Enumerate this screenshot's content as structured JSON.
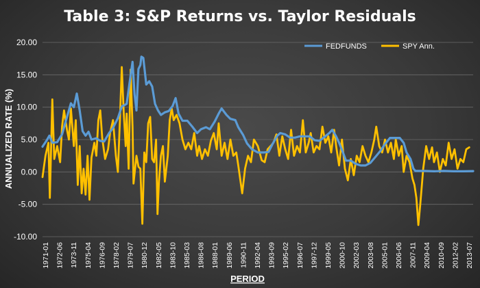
{
  "chart_data": {
    "type": "line",
    "title": "Table 3:  S&P Returns vs. Taylor Residuals",
    "xlabel": "PERIOD",
    "ylabel": "ANNUALIZED RATE (%)",
    "ylim": [
      -10,
      20
    ],
    "y_ticks": [
      "20.00",
      "15.00",
      "10.00",
      "5.00",
      "0.00",
      "-5.00",
      "-10.00"
    ],
    "x_range": [
      1971.0,
      2015.0
    ],
    "x_ticks": [
      "1971-01",
      "1972-06",
      "1973-11",
      "1975-04",
      "1976-09",
      "1978-02",
      "1979-07",
      "1980-12",
      "1982-05",
      "1983-10",
      "1985-03",
      "1986-08",
      "1988-01",
      "1989-06",
      "1990-11",
      "1992-04",
      "1993-09",
      "1995-02",
      "1996-07",
      "1997-12",
      "1999-05",
      "2000-10",
      "2002-03",
      "2003-08",
      "2005-01",
      "2006-06",
      "2007-11",
      "2009-04",
      "2010-09",
      "2012-02",
      "2013-07"
    ],
    "grid": true,
    "legend_position": "top-right",
    "series": [
      {
        "name": "FEDFUNDS",
        "color": "#5b9bd5",
        "points": [
          [
            1971.0,
            3.9
          ],
          [
            1971.4,
            4.8
          ],
          [
            1971.7,
            5.6
          ],
          [
            1972.0,
            4.5
          ],
          [
            1972.5,
            4.6
          ],
          [
            1973.0,
            5.8
          ],
          [
            1973.5,
            8.5
          ],
          [
            1973.9,
            10.6
          ],
          [
            1974.2,
            10.0
          ],
          [
            1974.5,
            12.1
          ],
          [
            1974.8,
            9.5
          ],
          [
            1975.1,
            6.3
          ],
          [
            1975.4,
            5.6
          ],
          [
            1975.7,
            6.2
          ],
          [
            1976.0,
            5.0
          ],
          [
            1976.5,
            5.2
          ],
          [
            1976.9,
            4.8
          ],
          [
            1977.3,
            4.7
          ],
          [
            1977.8,
            6.0
          ],
          [
            1978.2,
            6.8
          ],
          [
            1978.7,
            8.3
          ],
          [
            1979.1,
            10.1
          ],
          [
            1979.6,
            10.5
          ],
          [
            1979.9,
            13.8
          ],
          [
            1980.2,
            17.0
          ],
          [
            1980.4,
            12.0
          ],
          [
            1980.6,
            9.5
          ],
          [
            1980.8,
            15.9
          ],
          [
            1981.0,
            16.5
          ],
          [
            1981.1,
            17.8
          ],
          [
            1981.3,
            17.6
          ],
          [
            1981.6,
            13.5
          ],
          [
            1981.9,
            14.0
          ],
          [
            1982.2,
            13.2
          ],
          [
            1982.5,
            10.5
          ],
          [
            1982.8,
            9.5
          ],
          [
            1983.1,
            8.8
          ],
          [
            1983.5,
            9.2
          ],
          [
            1983.9,
            9.4
          ],
          [
            1984.3,
            10.2
          ],
          [
            1984.6,
            11.4
          ],
          [
            1984.9,
            9.0
          ],
          [
            1985.3,
            7.9
          ],
          [
            1985.8,
            7.9
          ],
          [
            1986.3,
            7.0
          ],
          [
            1986.8,
            6.0
          ],
          [
            1987.2,
            6.6
          ],
          [
            1987.7,
            6.9
          ],
          [
            1988.1,
            6.6
          ],
          [
            1988.6,
            7.8
          ],
          [
            1989.0,
            9.0
          ],
          [
            1989.3,
            9.8
          ],
          [
            1989.8,
            8.8
          ],
          [
            1990.2,
            8.2
          ],
          [
            1990.7,
            8.0
          ],
          [
            1991.0,
            6.9
          ],
          [
            1991.5,
            5.7
          ],
          [
            1991.9,
            4.4
          ],
          [
            1992.4,
            3.5
          ],
          [
            1993.0,
            3.0
          ],
          [
            1993.6,
            3.0
          ],
          [
            1994.1,
            3.1
          ],
          [
            1994.5,
            4.3
          ],
          [
            1995.0,
            5.6
          ],
          [
            1995.3,
            6.0
          ],
          [
            1995.8,
            5.8
          ],
          [
            1996.3,
            5.3
          ],
          [
            1996.8,
            5.3
          ],
          [
            1997.3,
            5.5
          ],
          [
            1997.8,
            5.5
          ],
          [
            1998.3,
            5.5
          ],
          [
            1998.8,
            4.9
          ],
          [
            1999.3,
            4.8
          ],
          [
            1999.8,
            5.4
          ],
          [
            2000.3,
            6.0
          ],
          [
            2000.6,
            6.5
          ],
          [
            2001.0,
            5.5
          ],
          [
            2001.3,
            4.5
          ],
          [
            2001.7,
            3.0
          ],
          [
            2002.0,
            1.75
          ],
          [
            2002.5,
            1.75
          ],
          [
            2003.0,
            1.25
          ],
          [
            2003.5,
            1.0
          ],
          [
            2004.0,
            1.0
          ],
          [
            2004.5,
            1.4
          ],
          [
            2005.0,
            2.3
          ],
          [
            2005.5,
            3.2
          ],
          [
            2006.0,
            4.3
          ],
          [
            2006.5,
            5.25
          ],
          [
            2007.0,
            5.25
          ],
          [
            2007.5,
            5.25
          ],
          [
            2007.9,
            4.5
          ],
          [
            2008.2,
            3.0
          ],
          [
            2008.6,
            2.0
          ],
          [
            2008.9,
            0.5
          ],
          [
            2009.1,
            0.15
          ],
          [
            2010.0,
            0.15
          ],
          [
            2011.0,
            0.1
          ],
          [
            2012.0,
            0.15
          ],
          [
            2013.0,
            0.1
          ],
          [
            2014.0,
            0.1
          ],
          [
            2015.0,
            0.13
          ]
        ]
      },
      {
        "name": "SPY Ann.",
        "color": "#ffc000",
        "points": [
          [
            1971.0,
            -0.8
          ],
          [
            1971.3,
            2.5
          ],
          [
            1971.6,
            4.5
          ],
          [
            1971.75,
            -4.0
          ],
          [
            1972.0,
            11.2
          ],
          [
            1972.2,
            2.0
          ],
          [
            1972.5,
            4.0
          ],
          [
            1972.8,
            1.5
          ],
          [
            1973.0,
            7.0
          ],
          [
            1973.2,
            9.5
          ],
          [
            1973.5,
            6.5
          ],
          [
            1973.7,
            5.0
          ],
          [
            1973.9,
            9.8
          ],
          [
            1974.2,
            4.0
          ],
          [
            1974.4,
            8.0
          ],
          [
            1974.6,
            -2.0
          ],
          [
            1974.8,
            4.0
          ],
          [
            1975.0,
            -3.3
          ],
          [
            1975.2,
            0.5
          ],
          [
            1975.4,
            -3.5
          ],
          [
            1975.6,
            2.5
          ],
          [
            1975.8,
            -4.3
          ],
          [
            1976.0,
            2.2
          ],
          [
            1976.3,
            4.5
          ],
          [
            1976.5,
            2.5
          ],
          [
            1976.7,
            8.0
          ],
          [
            1976.9,
            9.5
          ],
          [
            1977.1,
            5.2
          ],
          [
            1977.4,
            2.0
          ],
          [
            1977.7,
            3.5
          ],
          [
            1977.9,
            6.0
          ],
          [
            1978.2,
            8.0
          ],
          [
            1978.5,
            2.5
          ],
          [
            1978.7,
            0.0
          ],
          [
            1978.9,
            7.8
          ],
          [
            1979.1,
            16.2
          ],
          [
            1979.3,
            9.0
          ],
          [
            1979.5,
            4.0
          ],
          [
            1979.6,
            9.0
          ],
          [
            1979.8,
            0.5
          ],
          [
            1980.0,
            15.8
          ],
          [
            1980.2,
            7.0
          ],
          [
            1980.3,
            -1.8
          ],
          [
            1980.6,
            2.5
          ],
          [
            1980.8,
            0.8
          ],
          [
            1981.0,
            0.5
          ],
          [
            1981.2,
            -8.0
          ],
          [
            1981.4,
            3.0
          ],
          [
            1981.6,
            1.5
          ],
          [
            1981.8,
            7.5
          ],
          [
            1982.0,
            8.5
          ],
          [
            1982.2,
            2.0
          ],
          [
            1982.4,
            1.5
          ],
          [
            1982.6,
            5.0
          ],
          [
            1982.75,
            -6.5
          ],
          [
            1982.9,
            -1.5
          ],
          [
            1983.1,
            2.5
          ],
          [
            1983.3,
            4.0
          ],
          [
            1983.5,
            -1.5
          ],
          [
            1983.8,
            2.5
          ],
          [
            1984.0,
            8.0
          ],
          [
            1984.2,
            9.8
          ],
          [
            1984.4,
            8.0
          ],
          [
            1984.7,
            8.8
          ],
          [
            1985.0,
            7.5
          ],
          [
            1985.3,
            5.0
          ],
          [
            1985.6,
            3.5
          ],
          [
            1985.9,
            4.5
          ],
          [
            1986.2,
            3.5
          ],
          [
            1986.5,
            6.0
          ],
          [
            1986.8,
            2.5
          ],
          [
            1987.0,
            4.0
          ],
          [
            1987.3,
            2.0
          ],
          [
            1987.6,
            3.5
          ],
          [
            1987.9,
            2.5
          ],
          [
            1988.2,
            4.8
          ],
          [
            1988.5,
            6.0
          ],
          [
            1988.8,
            3.5
          ],
          [
            1989.0,
            7.5
          ],
          [
            1989.3,
            2.5
          ],
          [
            1989.6,
            4.5
          ],
          [
            1989.9,
            2.0
          ],
          [
            1990.2,
            5.0
          ],
          [
            1990.5,
            2.5
          ],
          [
            1990.8,
            3.0
          ],
          [
            1991.0,
            1.0
          ],
          [
            1991.4,
            -3.3
          ],
          [
            1991.7,
            0.5
          ],
          [
            1992.0,
            2.5
          ],
          [
            1992.3,
            1.5
          ],
          [
            1992.6,
            5.0
          ],
          [
            1993.0,
            4.0
          ],
          [
            1993.4,
            1.8
          ],
          [
            1993.7,
            1.5
          ],
          [
            1994.0,
            3.5
          ],
          [
            1994.3,
            4.0
          ],
          [
            1994.6,
            4.5
          ],
          [
            1994.9,
            5.8
          ],
          [
            1995.2,
            2.5
          ],
          [
            1995.5,
            5.5
          ],
          [
            1995.8,
            3.5
          ],
          [
            1996.1,
            2.0
          ],
          [
            1996.4,
            6.5
          ],
          [
            1996.7,
            2.5
          ],
          [
            1997.0,
            4.0
          ],
          [
            1997.3,
            3.0
          ],
          [
            1997.6,
            8.0
          ],
          [
            1997.9,
            3.0
          ],
          [
            1998.2,
            4.5
          ],
          [
            1998.4,
            6.0
          ],
          [
            1998.7,
            3.0
          ],
          [
            1999.0,
            4.0
          ],
          [
            1999.3,
            3.5
          ],
          [
            1999.6,
            7.0
          ],
          [
            1999.9,
            4.5
          ],
          [
            2000.2,
            5.5
          ],
          [
            2000.5,
            3.0
          ],
          [
            2000.8,
            6.5
          ],
          [
            2001.0,
            4.0
          ],
          [
            2001.3,
            1.0
          ],
          [
            2001.6,
            5.0
          ],
          [
            2001.9,
            0.5
          ],
          [
            2002.2,
            -1.3
          ],
          [
            2002.5,
            2.0
          ],
          [
            2002.8,
            -0.5
          ],
          [
            2003.1,
            2.5
          ],
          [
            2003.4,
            1.5
          ],
          [
            2003.7,
            4.0
          ],
          [
            2004.0,
            2.5
          ],
          [
            2004.3,
            1.5
          ],
          [
            2004.6,
            3.0
          ],
          [
            2004.9,
            5.0
          ],
          [
            2005.1,
            7.0
          ],
          [
            2005.4,
            4.0
          ],
          [
            2005.7,
            3.0
          ],
          [
            2006.0,
            5.0
          ],
          [
            2006.3,
            3.0
          ],
          [
            2006.6,
            4.5
          ],
          [
            2006.9,
            2.0
          ],
          [
            2007.1,
            5.0
          ],
          [
            2007.4,
            2.5
          ],
          [
            2007.7,
            4.0
          ],
          [
            2007.9,
            0.0
          ],
          [
            2008.2,
            2.5
          ],
          [
            2008.5,
            1.5
          ],
          [
            2008.8,
            -1.0
          ],
          [
            2009.0,
            -2.0
          ],
          [
            2009.2,
            -4.0
          ],
          [
            2009.4,
            -8.2
          ],
          [
            2009.6,
            -5.0
          ],
          [
            2009.9,
            0.5
          ],
          [
            2010.2,
            4.0
          ],
          [
            2010.5,
            2.0
          ],
          [
            2010.8,
            3.8
          ],
          [
            2011.0,
            1.5
          ],
          [
            2011.3,
            3.0
          ],
          [
            2011.6,
            0.0
          ],
          [
            2011.9,
            2.0
          ],
          [
            2012.2,
            1.0
          ],
          [
            2012.5,
            4.5
          ],
          [
            2012.8,
            2.0
          ],
          [
            2013.1,
            3.5
          ],
          [
            2013.4,
            0.5
          ],
          [
            2013.7,
            2.0
          ],
          [
            2014.0,
            1.5
          ],
          [
            2014.3,
            3.5
          ],
          [
            2014.6,
            3.8
          ]
        ]
      }
    ]
  }
}
